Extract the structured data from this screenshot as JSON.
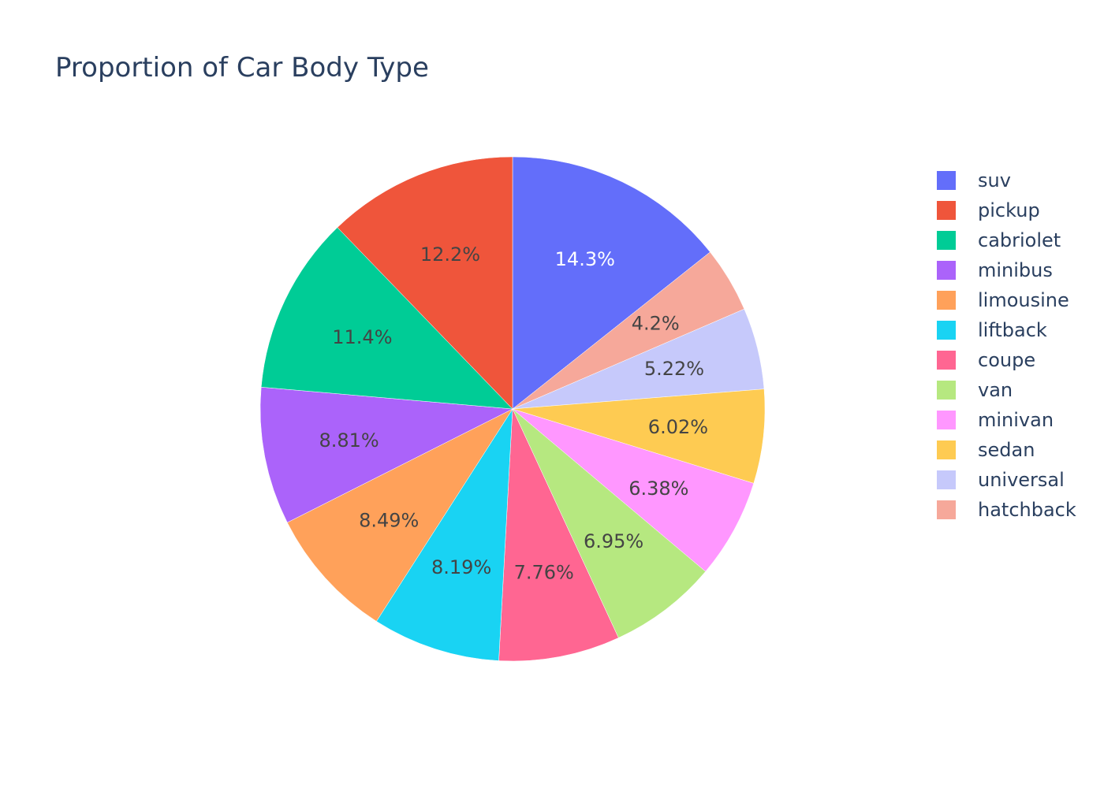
{
  "chart_data": {
    "type": "pie",
    "title": "Proportion of Car Body Type",
    "slices": [
      {
        "label": "suv",
        "percent": 14.3,
        "text": "14.3%",
        "color": "#636efa",
        "text_color": "#ffffff"
      },
      {
        "label": "hatchback",
        "percent": 4.2,
        "text": "4.2%",
        "color": "#f6a89a",
        "text_color": "#444444"
      },
      {
        "label": "universal",
        "percent": 5.22,
        "text": "5.22%",
        "color": "#c6c9fb",
        "text_color": "#444444"
      },
      {
        "label": "sedan",
        "percent": 6.02,
        "text": "6.02%",
        "color": "#fecb52",
        "text_color": "#444444"
      },
      {
        "label": "minivan",
        "percent": 6.38,
        "text": "6.38%",
        "color": "#ff97ff",
        "text_color": "#444444"
      },
      {
        "label": "van",
        "percent": 6.95,
        "text": "6.95%",
        "color": "#b6e880",
        "text_color": "#444444"
      },
      {
        "label": "coupe",
        "percent": 7.76,
        "text": "7.76%",
        "color": "#ff6692",
        "text_color": "#444444"
      },
      {
        "label": "liftback",
        "percent": 8.19,
        "text": "8.19%",
        "color": "#19d3f3",
        "text_color": "#444444"
      },
      {
        "label": "limousine",
        "percent": 8.49,
        "text": "8.49%",
        "color": "#ffa15a",
        "text_color": "#444444"
      },
      {
        "label": "minibus",
        "percent": 8.81,
        "text": "8.81%",
        "color": "#ab63fa",
        "text_color": "#444444"
      },
      {
        "label": "cabriolet",
        "percent": 11.4,
        "text": "11.4%",
        "color": "#00cc96",
        "text_color": "#444444"
      },
      {
        "label": "pickup",
        "percent": 12.2,
        "text": "12.2%",
        "color": "#ef553b",
        "text_color": "#444444"
      }
    ],
    "legend": [
      {
        "label": "suv",
        "color": "#636efa"
      },
      {
        "label": "pickup",
        "color": "#ef553b"
      },
      {
        "label": "cabriolet",
        "color": "#00cc96"
      },
      {
        "label": "minibus",
        "color": "#ab63fa"
      },
      {
        "label": "limousine",
        "color": "#ffa15a"
      },
      {
        "label": "liftback",
        "color": "#19d3f3"
      },
      {
        "label": "coupe",
        "color": "#ff6692"
      },
      {
        "label": "van",
        "color": "#b6e880"
      },
      {
        "label": "minivan",
        "color": "#ff97ff"
      },
      {
        "label": "sedan",
        "color": "#fecb52"
      },
      {
        "label": "universal",
        "color": "#c6c9fb"
      },
      {
        "label": "hatchback",
        "color": "#f6a89a"
      }
    ],
    "legend_position": "right",
    "direction": "clockwise",
    "start_angle": "12 o'clock"
  }
}
